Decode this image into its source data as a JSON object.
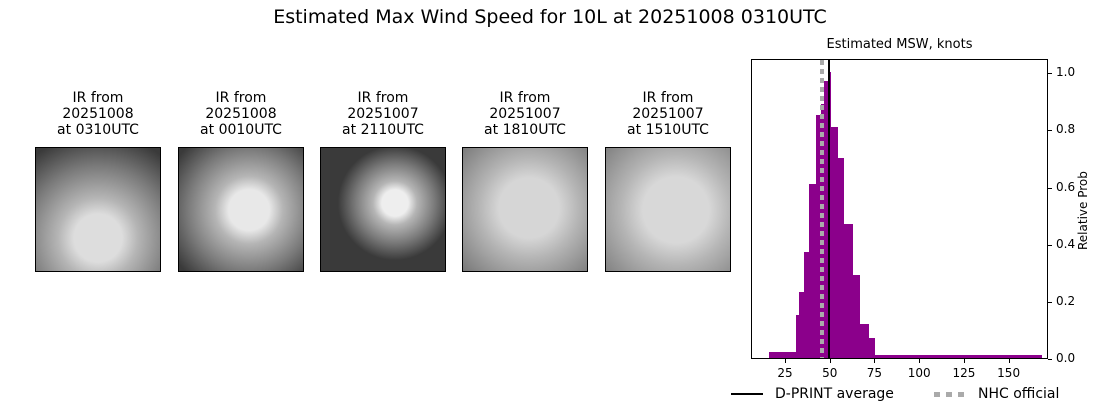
{
  "title": "Estimated Max Wind Speed for 10L at 20251008 0310UTC",
  "panels": [
    {
      "line1": "IR from",
      "line2": "20251008",
      "line3": "at 0310UTC",
      "core": [
        62,
        90,
        40,
        "#ddd"
      ]
    },
    {
      "line1": "IR from",
      "line2": "20251008",
      "line3": "at 0010UTC",
      "core": [
        70,
        62,
        34,
        "#e8e8e8"
      ]
    },
    {
      "line1": "IR from",
      "line2": "20251007",
      "line3": "at 2110UTC",
      "core": [
        74,
        55,
        22,
        "#eee"
      ]
    },
    {
      "line1": "IR from",
      "line2": "20251007",
      "line3": "at 1810UTC",
      "core": [
        66,
        60,
        50,
        "#d6d6d6"
      ]
    },
    {
      "line1": "IR from",
      "line2": "20251007",
      "line3": "at 1510UTC",
      "core": [
        70,
        62,
        55,
        "#d8d8d8"
      ]
    }
  ],
  "chart_data": {
    "type": "bar",
    "title": "Estimated MSW, knots",
    "xlabel": "",
    "ylabel": "Relative Prob",
    "xlim": [
      6,
      172
    ],
    "ylim": [
      0,
      1.05
    ],
    "x_ticks": [
      25,
      50,
      75,
      100,
      125,
      150
    ],
    "y_ticks": [
      "0.0",
      "0.2",
      "0.4",
      "0.6",
      "0.8",
      "1.0"
    ],
    "bar_color": "#8b008b",
    "bins": [
      {
        "x0": 15.5,
        "x1": 30.5,
        "value": 0.02
      },
      {
        "x0": 30.5,
        "x1": 32.3,
        "value": 0.15
      },
      {
        "x0": 32.3,
        "x1": 35.1,
        "value": 0.23
      },
      {
        "x0": 35.1,
        "x1": 37.9,
        "value": 0.37
      },
      {
        "x0": 37.9,
        "x1": 41.8,
        "value": 0.61
      },
      {
        "x0": 41.8,
        "x1": 44.6,
        "value": 0.85
      },
      {
        "x0": 44.6,
        "x1": 46.3,
        "value": 0.89
      },
      {
        "x0": 46.3,
        "x1": 48.6,
        "value": 0.97
      },
      {
        "x0": 48.6,
        "x1": 50.2,
        "value": 1.0
      },
      {
        "x0": 50.2,
        "x1": 54.2,
        "value": 0.81
      },
      {
        "x0": 54.2,
        "x1": 57.5,
        "value": 0.7
      },
      {
        "x0": 57.5,
        "x1": 62.6,
        "value": 0.47
      },
      {
        "x0": 62.6,
        "x1": 66.5,
        "value": 0.29
      },
      {
        "x0": 66.5,
        "x1": 71.6,
        "value": 0.12
      },
      {
        "x0": 71.6,
        "x1": 75.0,
        "value": 0.07
      },
      {
        "x0": 75.0,
        "x1": 168.0,
        "value": 0.01
      }
    ],
    "lines": [
      {
        "name": "D-PRINT average",
        "x": 49,
        "style": "solid",
        "color": "#000000"
      },
      {
        "name": "NHC official",
        "x": 45,
        "style": "dotted",
        "color": "#aaaaaa"
      }
    ],
    "legend_position": "bottom"
  },
  "legend": {
    "dprint": "D-PRINT average",
    "nhc": "NHC official"
  }
}
